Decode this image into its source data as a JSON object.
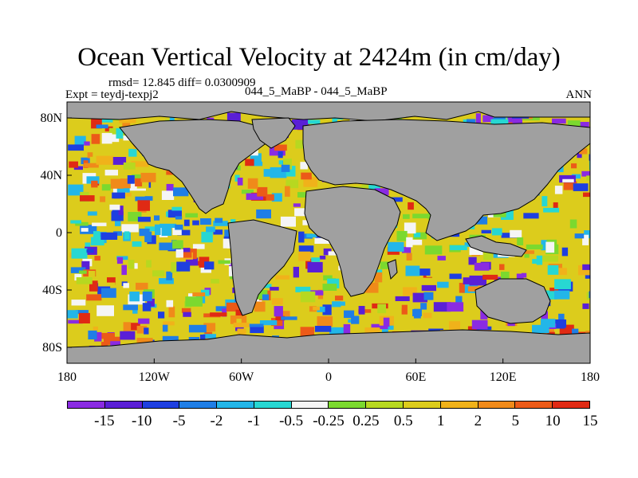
{
  "title": "Ocean Vertical Velocity at 2424m (in cm/day)",
  "stats_line": "rmsd= 12.845 diff= 0.0300909",
  "experiment_label": "Expt = teydj-texpj2",
  "comparison_label": "044_5_MaBP - 044_5_MaBP",
  "season_label": "ANN",
  "map": {
    "land_color": "#a0a0a0",
    "lat_ticks": [
      "80N",
      "40N",
      "0",
      "40S",
      "80S"
    ],
    "lon_ticks": [
      "180",
      "120W",
      "60W",
      "0",
      "60E",
      "120E",
      "180"
    ]
  },
  "colorbar": {
    "colors": [
      "#8a2be2",
      "#5a1fd6",
      "#1e3fe0",
      "#1f7ee6",
      "#23b6e8",
      "#27d7d2",
      "#f5f5f5",
      "#7bd92f",
      "#b7d820",
      "#dccc1c",
      "#f0b21a",
      "#f08a1a",
      "#ec5a18",
      "#e02a14"
    ],
    "labels": [
      "-15",
      "-10",
      "-5",
      "-2",
      "-1",
      "-0.5",
      "-0.25",
      "0.25",
      "0.5",
      "1",
      "2",
      "5",
      "10",
      "15"
    ]
  }
}
